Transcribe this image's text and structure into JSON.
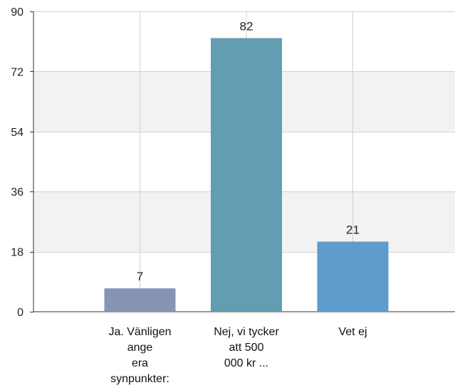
{
  "chart_data": {
    "type": "bar",
    "categories": [
      [
        "Ja. Vänligen",
        "ange",
        "era",
        "synpunkter:"
      ],
      [
        "Nej, vi tycker",
        "att 500",
        "000 kr ..."
      ],
      [
        "Vet ej"
      ]
    ],
    "values": [
      7,
      82,
      21
    ],
    "data_labels": [
      "7",
      "82",
      "21"
    ],
    "bar_colors": [
      "#8795b5",
      "#629db1",
      "#5f9bcb"
    ],
    "ylim": [
      0,
      90
    ],
    "yticks": [
      "0",
      "18",
      "36",
      "54",
      "72",
      "90"
    ],
    "ytick_values": [
      0,
      18,
      36,
      54,
      72,
      90
    ],
    "band_color": "#f2f2f2",
    "grid": true,
    "title": "",
    "xlabel": "",
    "ylabel": ""
  }
}
